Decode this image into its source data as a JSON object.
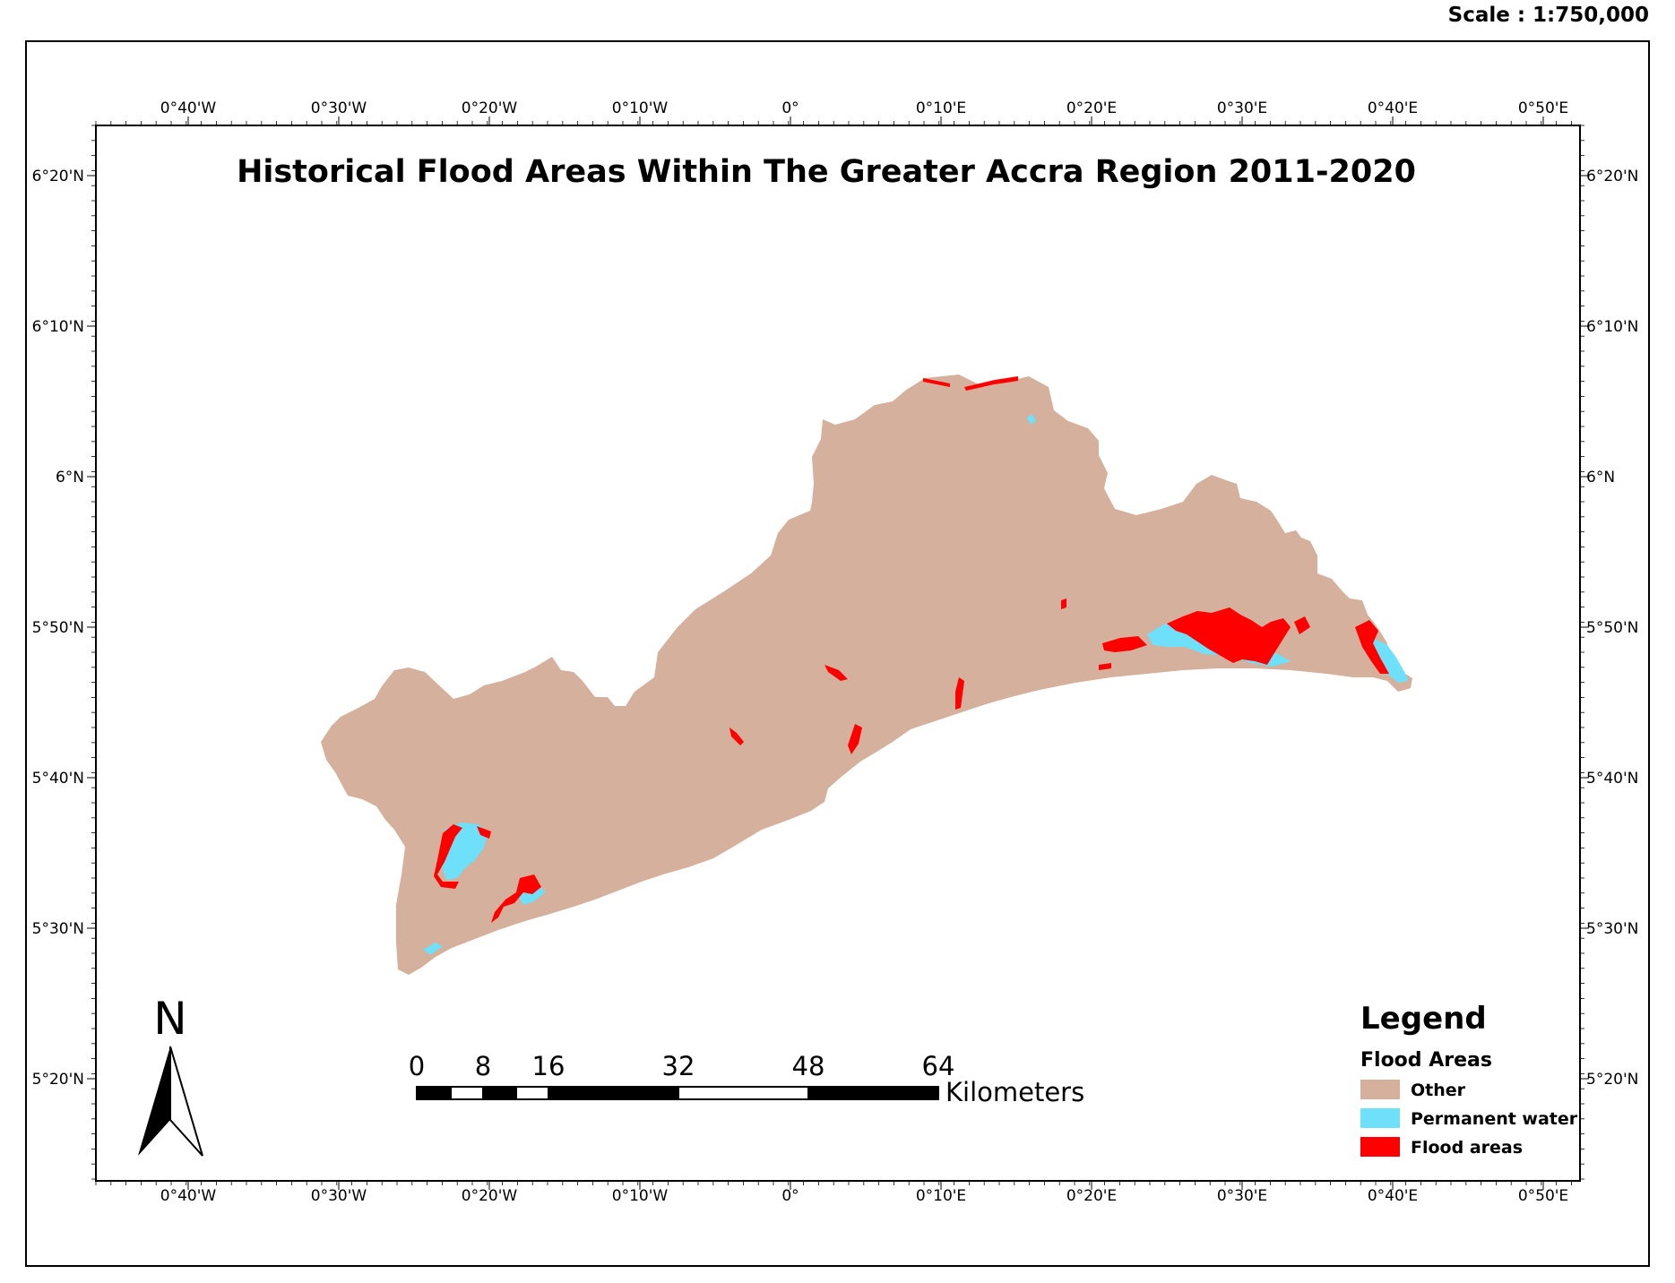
{
  "scale_text": "Scale : 1:750,000",
  "title": "Historical Flood Areas Within The Greater Accra Region 2011-2020",
  "graticule": {
    "longitudes": [
      "0°40'W",
      "0°30'W",
      "0°20'W",
      "0°10'W",
      "0°",
      "0°10'E",
      "0°20'E",
      "0°30'E",
      "0°40'E",
      "0°50'E"
    ],
    "latitudes": [
      "6°20'N",
      "6°10'N",
      "6°N",
      "5°50'N",
      "5°40'N",
      "5°30'N",
      "5°20'N"
    ]
  },
  "north_arrow": {
    "letter": "N"
  },
  "scale_bar": {
    "labels": [
      "0",
      "8",
      "16",
      "32",
      "48",
      "64"
    ],
    "unit": "Kilometers"
  },
  "legend": {
    "title": "Legend",
    "subtitle": "Flood Areas",
    "items": [
      {
        "label": "Other",
        "color": "#d4b09d"
      },
      {
        "label": "Permanent water",
        "color": "#6ee0fa"
      },
      {
        "label": "Flood areas",
        "color": "#ff0000"
      }
    ]
  },
  "colors": {
    "region_fill": "#d4b09d",
    "water": "#6ee0fa",
    "flood": "#ff0000"
  }
}
